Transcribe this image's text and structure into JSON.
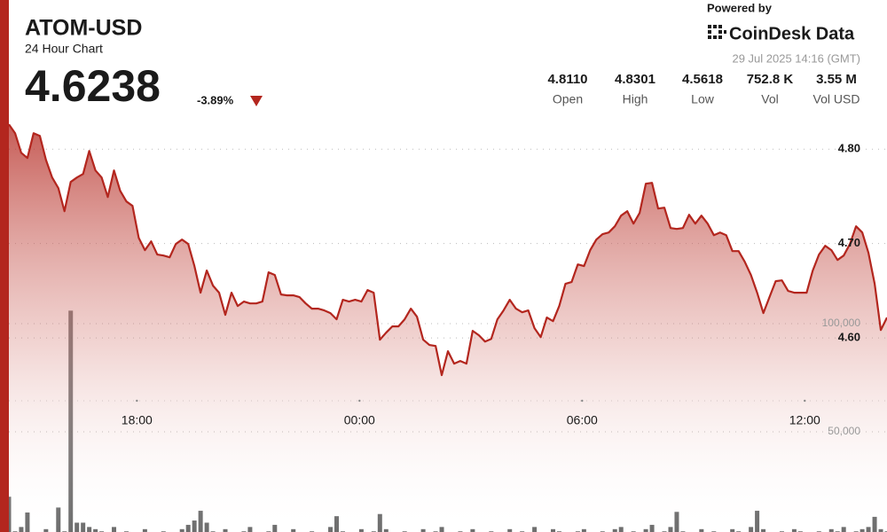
{
  "header": {
    "symbol": "ATOM-USD",
    "subtitle": "24 Hour Chart",
    "price": "4.6238",
    "change": "-3.89%",
    "powered_by": "Powered by",
    "brand": "CoinDesk Data",
    "timestamp": "29 Jul 2025 14:16 (GMT)",
    "stats": [
      {
        "value": "4.8110",
        "label": "Open"
      },
      {
        "value": "4.8301",
        "label": "High"
      },
      {
        "value": "4.5618",
        "label": "Low"
      },
      {
        "value": "752.8 K",
        "label": "Vol"
      },
      {
        "value": "3.55 M",
        "label": "Vol USD"
      }
    ]
  },
  "chart_data": {
    "type": "line",
    "color": "#b3261e",
    "volume_color": "#555555",
    "grid": true,
    "x": [
      -567,
      -557,
      -547,
      -537,
      -527,
      -517,
      -507,
      -497,
      -487,
      -477,
      -467,
      -457,
      -447,
      -437,
      -427,
      -417,
      -407,
      -397,
      -387,
      -377,
      -367,
      -357,
      -347,
      -337,
      -327,
      -317,
      -307,
      -297,
      -287,
      -277,
      -267,
      -257,
      -247,
      -237,
      -227,
      -217,
      -207,
      -197,
      -187,
      -177,
      -167,
      -157,
      -147,
      -137,
      -127,
      -117,
      -107,
      -97,
      -87,
      -77,
      -67,
      -57,
      -47,
      -37,
      -27,
      -17,
      -7,
      3,
      13,
      23,
      33,
      43,
      53,
      63,
      73,
      83,
      93,
      103,
      113,
      123,
      133,
      143,
      153,
      163,
      173,
      183,
      193,
      203,
      213,
      223,
      233,
      243,
      253,
      263,
      273,
      283,
      293,
      303,
      313,
      323,
      333,
      343,
      353,
      363,
      373,
      383,
      393,
      403,
      413,
      423,
      433,
      443,
      453,
      463,
      473,
      483,
      493,
      503,
      513,
      523,
      533,
      543,
      553,
      563,
      573,
      583,
      593,
      603,
      613,
      623,
      633,
      643,
      653,
      663,
      673,
      683,
      693,
      703,
      713,
      723,
      733,
      743,
      753,
      763,
      773,
      783,
      793,
      803,
      813,
      823,
      833,
      843,
      853
    ],
    "values": [
      4.8263,
      4.8169,
      4.7962,
      4.7906,
      4.8169,
      4.8141,
      4.7887,
      4.77,
      4.7587,
      4.7343,
      4.7653,
      4.77,
      4.7737,
      4.7981,
      4.7775,
      4.77,
      4.7493,
      4.7775,
      4.7559,
      4.7446,
      4.7399,
      4.7061,
      4.693,
      4.7023,
      4.6883,
      4.6873,
      4.6854,
      4.6995,
      4.7042,
      4.6995,
      4.6761,
      4.6479,
      4.6714,
      4.6554,
      4.6479,
      4.6244,
      4.6479,
      4.6338,
      4.6385,
      4.6366,
      4.6366,
      4.6385,
      4.6695,
      4.6667,
      4.646,
      4.6451,
      4.6451,
      4.6432,
      4.6366,
      4.631,
      4.631,
      4.6291,
      4.6263,
      4.6197,
      4.6404,
      4.6385,
      4.6404,
      4.6385,
      4.6507,
      4.6479,
      4.5981,
      4.6056,
      4.6122,
      4.6122,
      4.6197,
      4.631,
      4.6225,
      4.5981,
      4.5925,
      4.5915,
      4.5606,
      4.5859,
      4.5728,
      4.5756,
      4.5728,
      4.6075,
      4.6028,
      4.5962,
      4.599,
      4.6197,
      4.6291,
      4.6404,
      4.631,
      4.6272,
      4.6291,
      4.6103,
      4.6009,
      4.6216,
      4.6178,
      4.6338,
      4.6573,
      4.6592,
      4.6779,
      4.6761,
      4.693,
      4.7042,
      4.7099,
      4.7117,
      4.7183,
      4.7296,
      4.7343,
      4.7211,
      4.7324,
      4.7634,
      4.7643,
      4.7371,
      4.738,
      4.7164,
      4.7155,
      4.7164,
      4.7305,
      4.7211,
      4.7296,
      4.7211,
      4.7089,
      4.7117,
      4.7089,
      4.692,
      4.692,
      4.6807,
      4.6667,
      4.6479,
      4.6263,
      4.6432,
      4.6601,
      4.661,
      4.6498,
      4.6479,
      4.6479,
      4.6479,
      4.6714,
      4.6883,
      4.6976,
      4.693,
      4.6826,
      4.6873,
      4.6995,
      4.7183,
      4.7117,
      4.6901,
      4.6573,
      4.6084,
      4.6216
    ],
    "volume": [
      20000,
      4000,
      6000,
      12700,
      3000,
      2000,
      5000,
      3000,
      15000,
      4000,
      106000,
      8000,
      8000,
      6000,
      5000,
      4000,
      3000,
      6000,
      2000,
      4000,
      3000,
      2000,
      5000,
      3000,
      2000,
      4000,
      3000,
      2000,
      5000,
      7000,
      9000,
      13500,
      8000,
      4000,
      3000,
      5000,
      2000,
      3000,
      4000,
      6000,
      3000,
      2000,
      4000,
      7000,
      3000,
      2000,
      5000,
      3000,
      2000,
      4000,
      3000,
      2000,
      6000,
      11000,
      4000,
      3000,
      2000,
      5000,
      3000,
      4000,
      12000,
      5000,
      3000,
      2000,
      4000,
      3000,
      2000,
      5000,
      3000,
      4000,
      6000,
      3000,
      2000,
      4000,
      3000,
      5000,
      2000,
      3000,
      4000,
      2000,
      3000,
      5000,
      2000,
      4000,
      3000,
      6000,
      2000,
      3000,
      5000,
      4000,
      3000,
      2000,
      4000,
      5000,
      3000,
      2000,
      4000,
      3000,
      5000,
      6000,
      3000,
      4000,
      2000,
      5000,
      7000,
      3000,
      4000,
      6000,
      13000,
      4000,
      3000,
      2000,
      5000,
      3000,
      4000,
      2000,
      3000,
      5000,
      4000,
      3000,
      6000,
      13500,
      5000,
      3000,
      2000,
      4000,
      3000,
      5000,
      4000,
      3000,
      2000,
      4000,
      3000,
      5000,
      4000,
      6000,
      3000,
      4000,
      5000,
      6000,
      10700,
      5000,
      4000
    ],
    "xlim": [
      -567,
      853
    ],
    "xticks": [
      {
        "value": -360,
        "label": "18:00"
      },
      {
        "value": 0,
        "label": "00:00"
      },
      {
        "value": 360,
        "label": "06:00"
      },
      {
        "value": 720,
        "label": "12:00"
      }
    ],
    "ylim": [
      4.4,
      4.85
    ],
    "yticks": [
      {
        "value": 4.8,
        "label": "4.80"
      },
      {
        "value": 4.7,
        "label": "4.70"
      },
      {
        "value": 4.6,
        "label": "4.60"
      }
    ],
    "y2lim": [
      0,
      200000
    ],
    "y2ticks": [
      {
        "value": 100000,
        "label": "100,000"
      },
      {
        "value": 50000,
        "label": "50,000"
      }
    ]
  }
}
